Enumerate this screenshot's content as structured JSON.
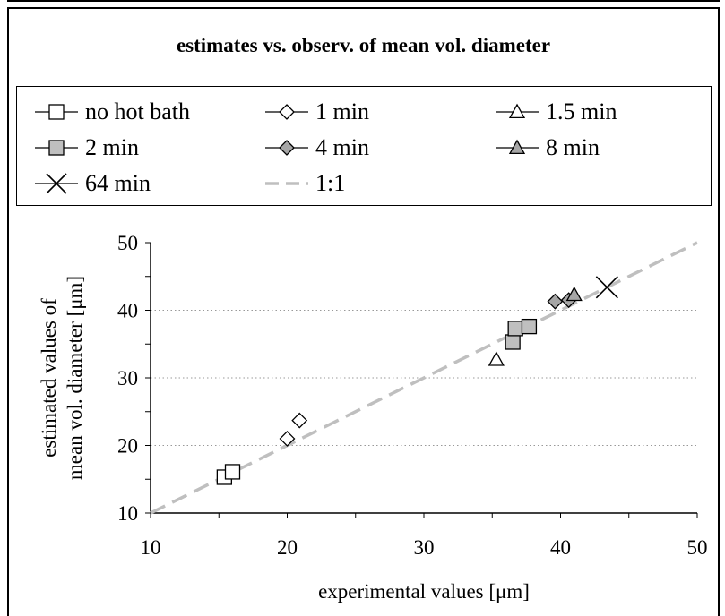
{
  "chart_data": {
    "type": "scatter",
    "title": "estimates vs. observ. of mean vol. diameter",
    "xlabel": "experimental values [μm]",
    "ylabel_lines": [
      "estimated values of",
      "mean vol. diameter [μm]"
    ],
    "xlim": [
      10,
      50
    ],
    "ylim": [
      10,
      50
    ],
    "xticks": [
      10,
      20,
      30,
      40,
      50
    ],
    "yticks": [
      10,
      20,
      30,
      40,
      50
    ],
    "grid": "horizontal dotted",
    "legend_position": "top",
    "series": [
      {
        "name": "no hot bath",
        "marker": "square",
        "fill": "#ffffff",
        "points": [
          [
            15.4,
            15.3
          ],
          [
            16.0,
            16.1
          ]
        ]
      },
      {
        "name": "1 min",
        "marker": "diamond",
        "fill": "#ffffff",
        "points": [
          [
            20.0,
            21.0
          ],
          [
            20.9,
            23.7
          ]
        ]
      },
      {
        "name": "1.5 min",
        "marker": "triangle",
        "fill": "#ffffff",
        "points": [
          [
            35.3,
            32.7
          ]
        ]
      },
      {
        "name": "2 min",
        "marker": "square",
        "fill": "#bfbfbf",
        "points": [
          [
            36.5,
            35.3
          ],
          [
            36.7,
            37.3
          ],
          [
            37.7,
            37.6
          ]
        ]
      },
      {
        "name": "4 min",
        "marker": "diamond",
        "fill": "#a6a6a6",
        "points": [
          [
            39.6,
            41.3
          ],
          [
            40.6,
            41.5
          ]
        ]
      },
      {
        "name": "8 min",
        "marker": "triangle",
        "fill": "#a6a6a6",
        "points": [
          [
            41.0,
            42.3
          ]
        ]
      },
      {
        "name": "64 min",
        "marker": "x",
        "fill": "none",
        "points": [
          [
            43.4,
            43.4
          ]
        ]
      },
      {
        "name": "1:1",
        "marker": "dashed-line",
        "color": "#bfbfbf",
        "points": [
          [
            10,
            10
          ],
          [
            50,
            50
          ]
        ]
      }
    ]
  }
}
